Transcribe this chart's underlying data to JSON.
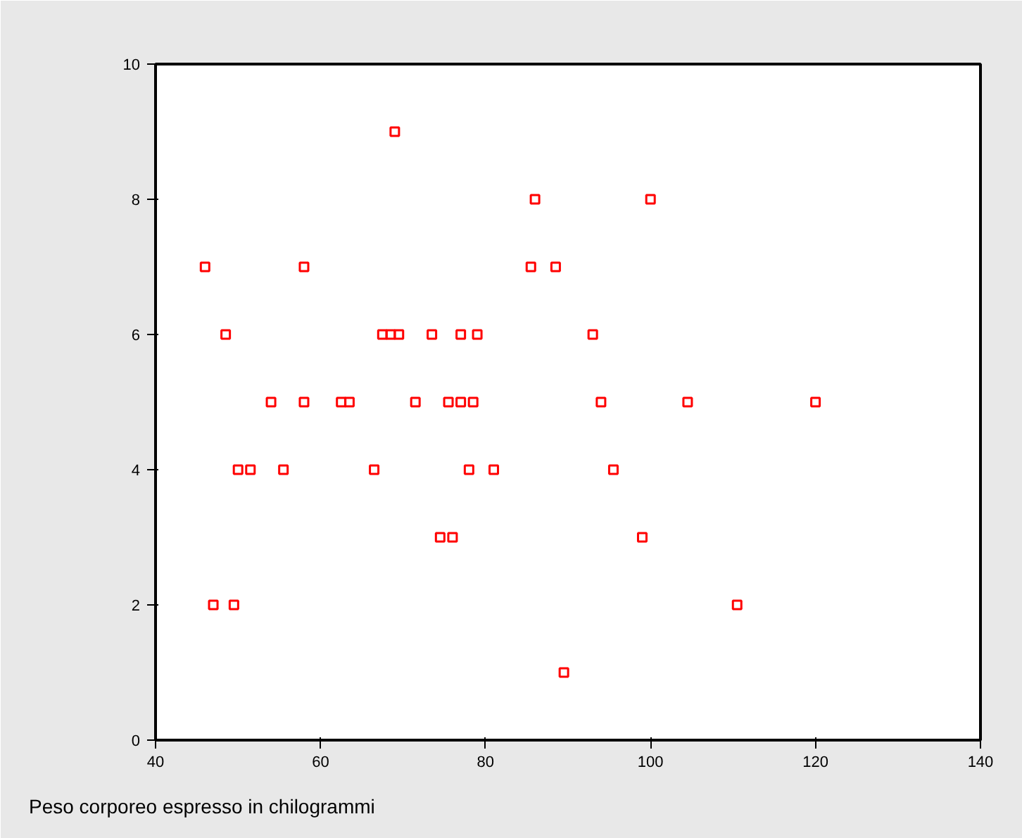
{
  "chart_data": {
    "type": "scatter",
    "xlabel": "Peso corporeo espresso in chilogrammi",
    "x": [
      46,
      48.5,
      50,
      51.5,
      47,
      49.5,
      54,
      55.5,
      58,
      58,
      62.5,
      63.5,
      66.5,
      67.5,
      68.5,
      69.5,
      69,
      71.5,
      73.5,
      74.5,
      76,
      75.5,
      77,
      78.5,
      77,
      79,
      78,
      81,
      85.5,
      86,
      88.5,
      89.5,
      93,
      94,
      95.5,
      100,
      99,
      104.5,
      110.5,
      120
    ],
    "values": [
      7,
      6,
      4,
      4,
      2,
      2,
      5,
      4,
      7,
      5,
      5,
      5,
      4,
      6,
      6,
      6,
      9,
      5,
      6,
      3,
      3,
      5,
      5,
      5,
      6,
      6,
      4,
      4,
      7,
      8,
      7,
      1,
      6,
      5,
      4,
      8,
      3,
      5,
      2,
      5
    ],
    "color": "#ff0000",
    "marker": "square",
    "xlim": [
      40,
      140
    ],
    "xticks": [
      40,
      60,
      80,
      100,
      120,
      140
    ],
    "ylim": [
      0,
      10
    ],
    "yticks": [
      0,
      2,
      4,
      6,
      8,
      10
    ],
    "grid": false
  }
}
